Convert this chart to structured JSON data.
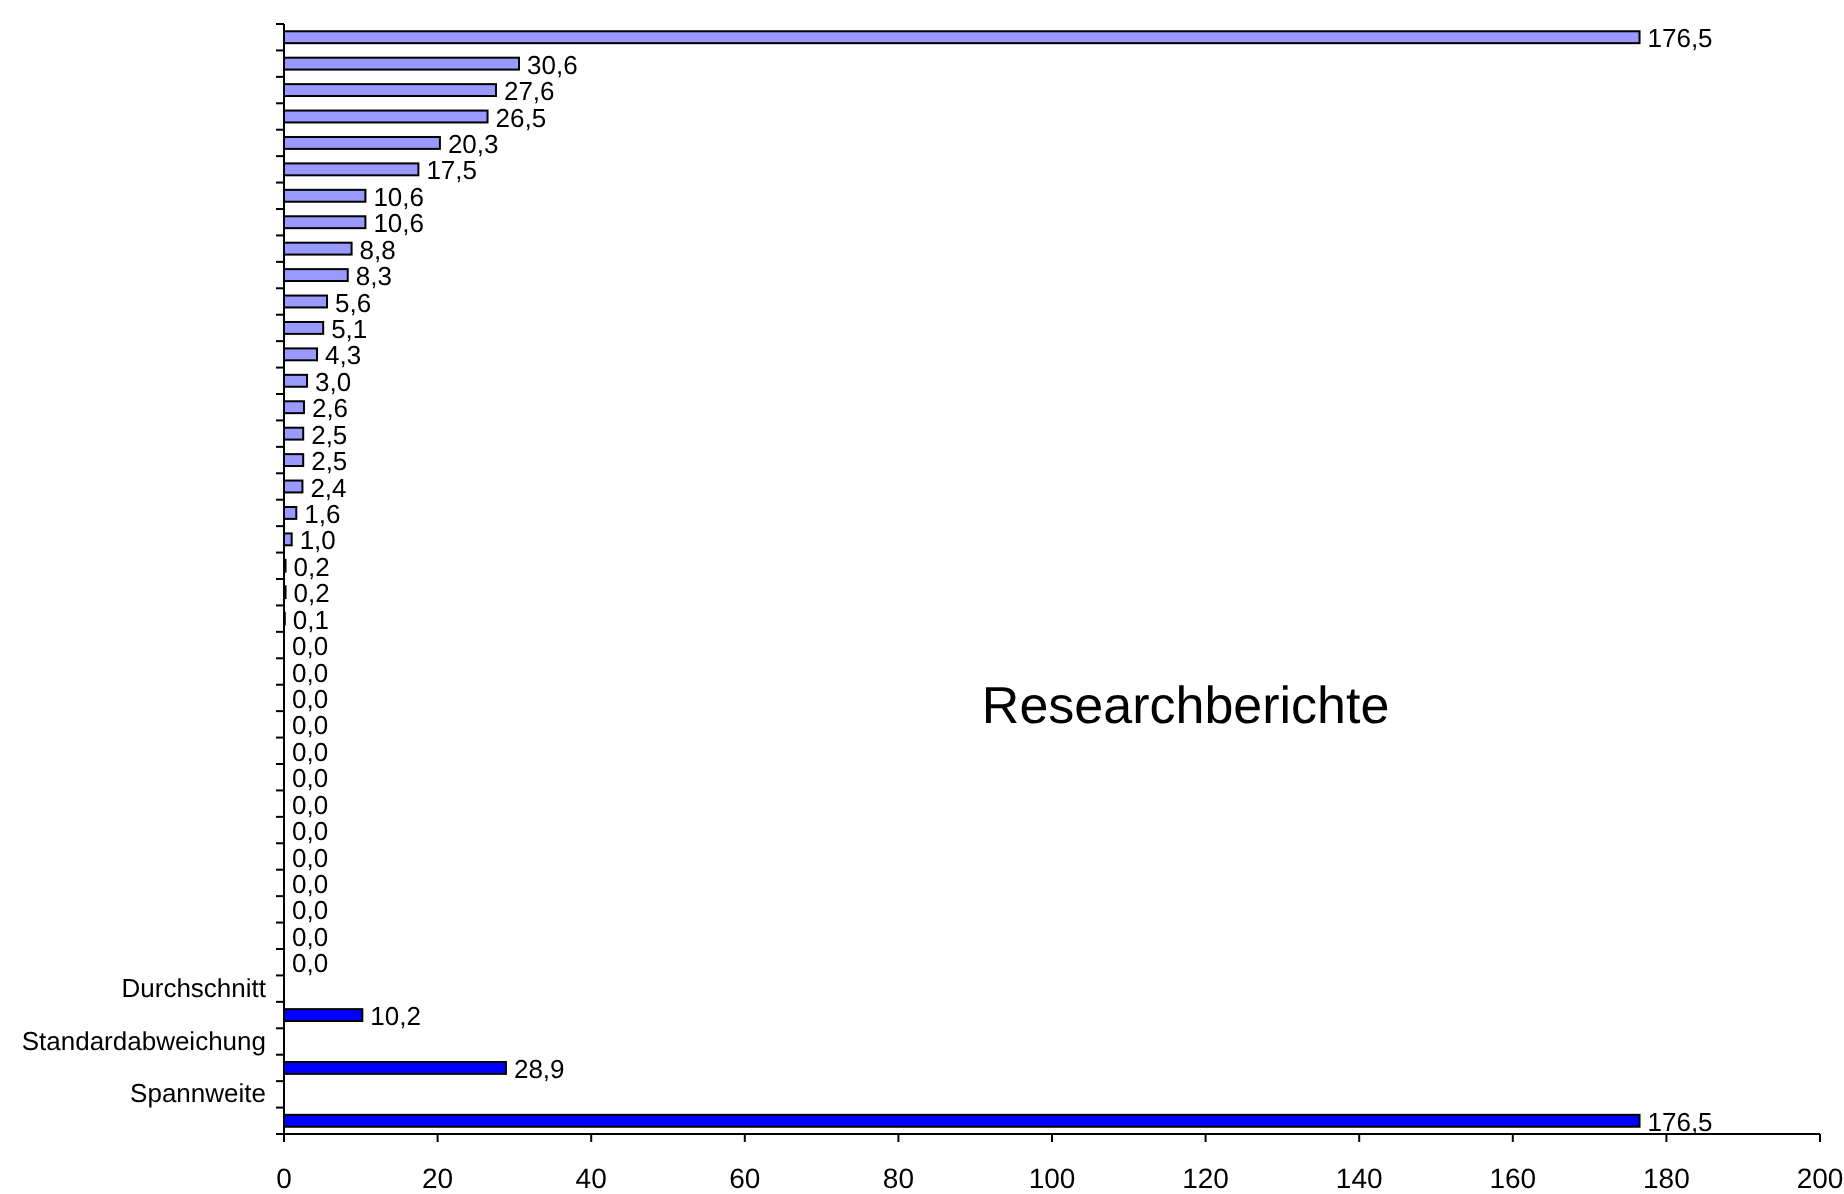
{
  "chart_data": {
    "type": "bar",
    "orientation": "horizontal",
    "title": "Researchberichte",
    "categories": [
      null,
      null,
      null,
      null,
      null,
      null,
      null,
      null,
      null,
      null,
      null,
      null,
      null,
      null,
      null,
      null,
      null,
      null,
      null,
      null,
      null,
      null,
      null,
      null,
      null,
      null,
      null,
      null,
      null,
      null,
      null,
      null,
      null,
      null,
      null,
      null,
      "Durchschnitt",
      null,
      "Standardabweichung",
      null,
      "Spannweite",
      null
    ],
    "values": [
      176.5,
      30.6,
      27.6,
      26.5,
      20.3,
      17.5,
      10.6,
      10.6,
      8.8,
      8.3,
      5.6,
      5.1,
      4.3,
      3.0,
      2.6,
      2.5,
      2.5,
      2.4,
      1.6,
      1.0,
      0.2,
      0.2,
      0.1,
      0.0,
      0.0,
      0.0,
      0.0,
      0.0,
      0.0,
      0.0,
      0.0,
      0.0,
      0.0,
      0.0,
      0.0,
      0.0,
      null,
      10.2,
      null,
      28.9,
      null,
      176.5
    ],
    "value_labels": [
      "176,5",
      "30,6",
      "27,6",
      "26,5",
      "20,3",
      "17,5",
      "10,6",
      "10,6",
      "8,8",
      "8,3",
      "5,6",
      "5,1",
      "4,3",
      "3,0",
      "2,6",
      "2,5",
      "2,5",
      "2,4",
      "1,6",
      "1,0",
      "0,2",
      "0,2",
      "0,1",
      "0,0",
      "0,0",
      "0,0",
      "0,0",
      "0,0",
      "0,0",
      "0,0",
      "0,0",
      "0,0",
      "0,0",
      "0,0",
      "0,0",
      "0,0",
      null,
      "10,2",
      null,
      "28,9",
      null,
      "176,5"
    ],
    "colors": [
      "#9999ff",
      "#9999ff",
      "#9999ff",
      "#9999ff",
      "#9999ff",
      "#9999ff",
      "#9999ff",
      "#9999ff",
      "#9999ff",
      "#9999ff",
      "#9999ff",
      "#9999ff",
      "#9999ff",
      "#9999ff",
      "#9999ff",
      "#9999ff",
      "#9999ff",
      "#9999ff",
      "#9999ff",
      "#9999ff",
      "#9999ff",
      "#9999ff",
      "#9999ff",
      "#9999ff",
      "#9999ff",
      "#9999ff",
      "#9999ff",
      "#9999ff",
      "#9999ff",
      "#9999ff",
      "#9999ff",
      "#9999ff",
      "#9999ff",
      "#9999ff",
      "#9999ff",
      "#9999ff",
      null,
      "#0000ff",
      null,
      "#0000ff",
      null,
      "#0000ff"
    ],
    "xlim": [
      0,
      200
    ],
    "xticks": [
      0,
      20,
      40,
      60,
      80,
      100,
      120,
      140,
      160,
      180,
      200
    ]
  }
}
